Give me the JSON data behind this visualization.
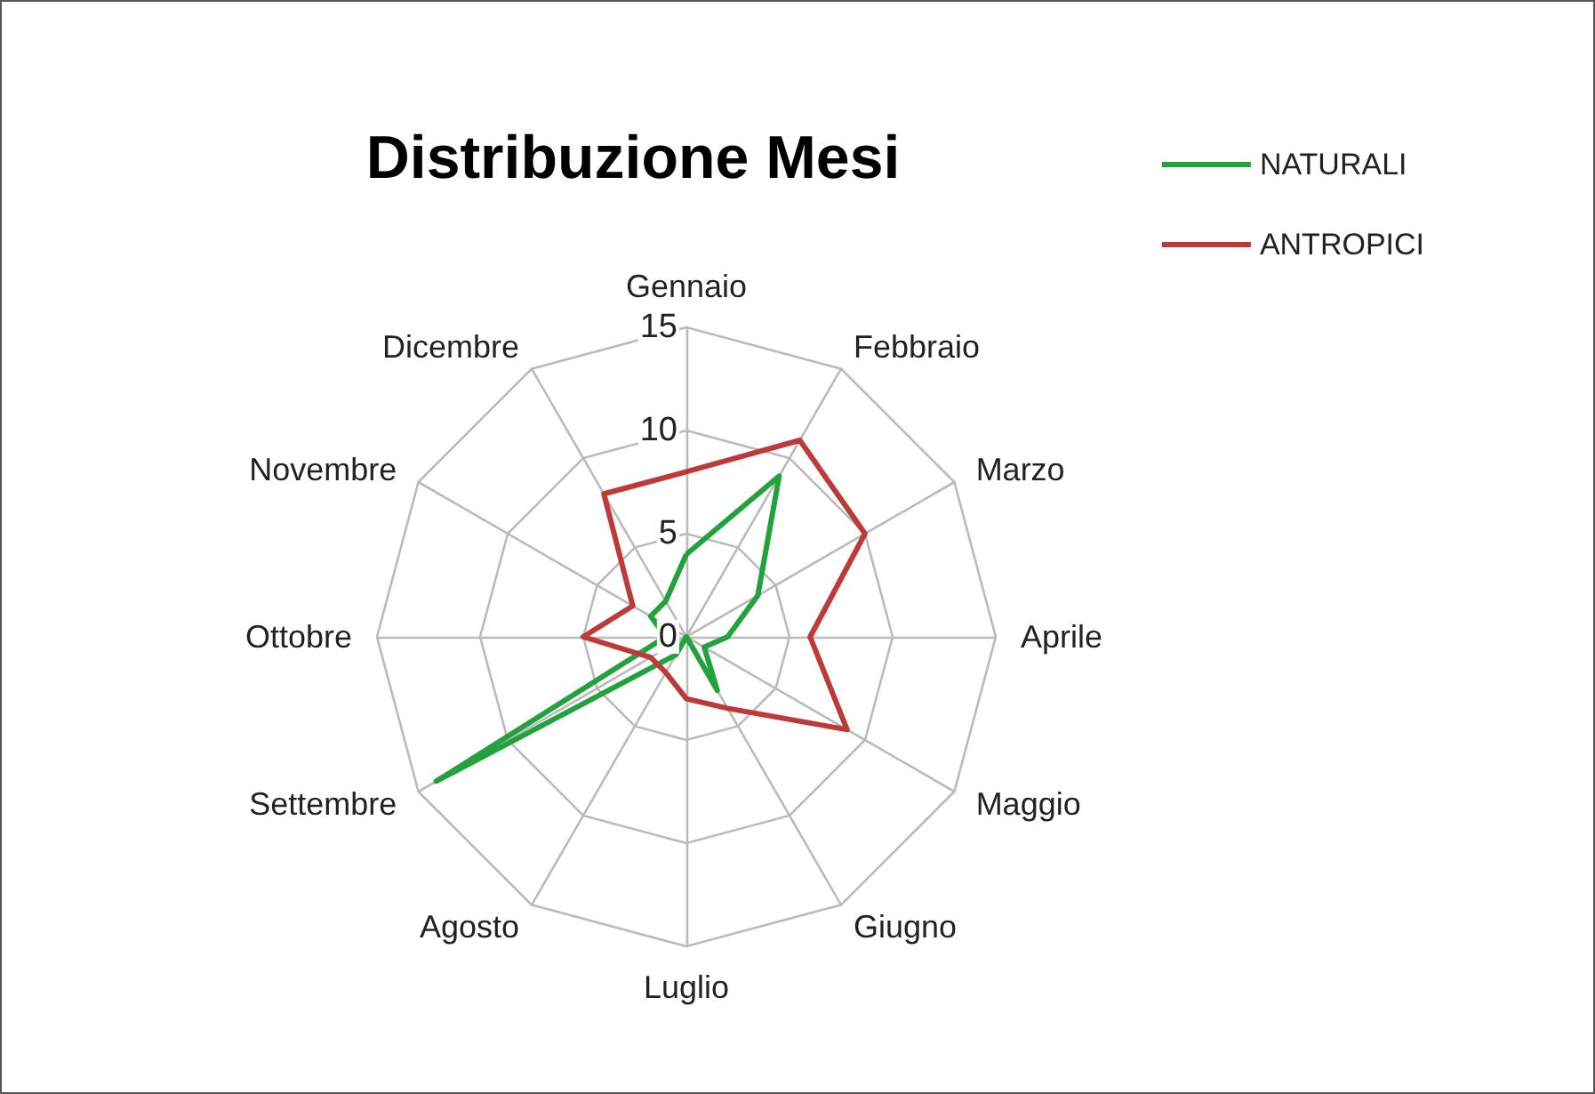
{
  "chart_data": {
    "type": "radar",
    "title": "Distribuzione Mesi",
    "categories": [
      "Gennaio",
      "Febbraio",
      "Marzo",
      "Aprile",
      "Maggio",
      "Giugno",
      "Luglio",
      "Agosto",
      "Settembre",
      "Ottobre",
      "Novembre",
      "Dicembre"
    ],
    "series": [
      {
        "name": "NATURALI",
        "color": "#22a23c",
        "values": [
          4,
          9,
          4,
          2,
          1,
          3,
          0,
          1,
          14,
          1,
          2,
          2
        ]
      },
      {
        "name": "ANTROPICI",
        "color": "#be3a3a",
        "values": [
          8,
          11,
          10,
          6,
          9,
          4,
          3,
          2,
          2,
          5,
          3,
          8
        ]
      }
    ],
    "ylim": [
      0,
      15
    ],
    "yticks": [
      0,
      5,
      10,
      15
    ],
    "legend": "top right",
    "marker": "none",
    "line_style": "solid"
  }
}
